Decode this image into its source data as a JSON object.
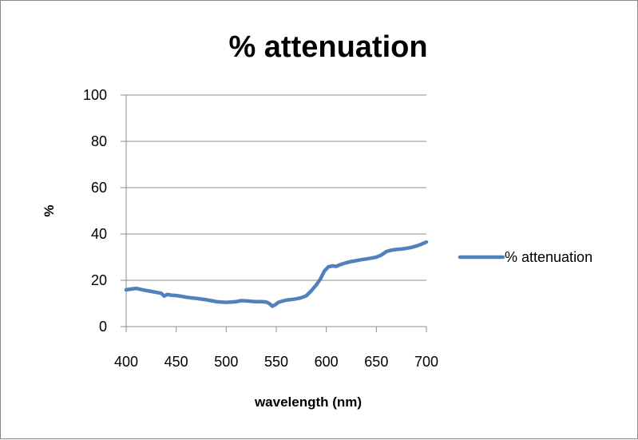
{
  "chart_data": {
    "type": "line",
    "title": "% attenuation",
    "xlabel": "wavelength (nm)",
    "ylabel": "%",
    "xlim": [
      400,
      700
    ],
    "ylim": [
      0,
      100
    ],
    "x_ticks": [
      "400",
      "450",
      "500",
      "550",
      "600",
      "650",
      "700"
    ],
    "y_ticks": [
      "0",
      "20",
      "40",
      "60",
      "80",
      "100"
    ],
    "grid": "horizontal",
    "legend_position": "right",
    "series": [
      {
        "name": "% attenuation",
        "color": "#4f81bd",
        "points": [
          [
            400,
            15.9
          ],
          [
            405,
            16.2
          ],
          [
            410,
            16.5
          ],
          [
            415,
            16.0
          ],
          [
            420,
            15.6
          ],
          [
            425,
            15.2
          ],
          [
            430,
            14.8
          ],
          [
            435,
            14.4
          ],
          [
            438,
            13.2
          ],
          [
            441,
            13.9
          ],
          [
            445,
            13.6
          ],
          [
            450,
            13.4
          ],
          [
            455,
            13.1
          ],
          [
            460,
            12.7
          ],
          [
            465,
            12.4
          ],
          [
            470,
            12.2
          ],
          [
            475,
            11.9
          ],
          [
            480,
            11.6
          ],
          [
            485,
            11.2
          ],
          [
            490,
            10.8
          ],
          [
            495,
            10.6
          ],
          [
            500,
            10.5
          ],
          [
            505,
            10.6
          ],
          [
            510,
            10.8
          ],
          [
            515,
            11.2
          ],
          [
            520,
            11.1
          ],
          [
            525,
            10.9
          ],
          [
            530,
            10.8
          ],
          [
            535,
            10.8
          ],
          [
            540,
            10.6
          ],
          [
            543,
            10.0
          ],
          [
            546,
            8.8
          ],
          [
            549,
            9.4
          ],
          [
            552,
            10.5
          ],
          [
            556,
            11.0
          ],
          [
            560,
            11.4
          ],
          [
            565,
            11.7
          ],
          [
            570,
            12.0
          ],
          [
            575,
            12.5
          ],
          [
            580,
            13.3
          ],
          [
            585,
            15.5
          ],
          [
            590,
            18.0
          ],
          [
            594,
            20.5
          ],
          [
            598,
            24.0
          ],
          [
            602,
            25.8
          ],
          [
            606,
            26.2
          ],
          [
            610,
            26.0
          ],
          [
            614,
            26.8
          ],
          [
            620,
            27.6
          ],
          [
            625,
            28.1
          ],
          [
            630,
            28.5
          ],
          [
            635,
            28.9
          ],
          [
            640,
            29.2
          ],
          [
            645,
            29.6
          ],
          [
            650,
            30.0
          ],
          [
            655,
            30.9
          ],
          [
            660,
            32.4
          ],
          [
            665,
            33.0
          ],
          [
            670,
            33.3
          ],
          [
            675,
            33.5
          ],
          [
            680,
            33.8
          ],
          [
            685,
            34.2
          ],
          [
            690,
            34.8
          ],
          [
            695,
            35.6
          ],
          [
            700,
            36.5
          ]
        ]
      }
    ]
  }
}
